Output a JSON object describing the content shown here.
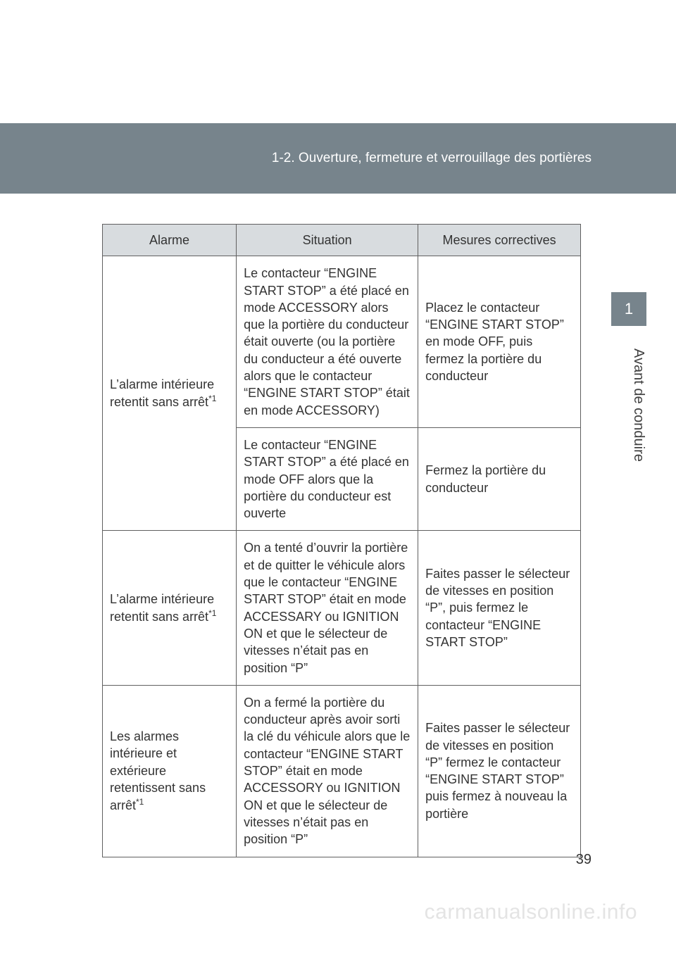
{
  "header": {
    "section_title": "1-2. Ouverture, fermeture et verrouillage des portières",
    "background_color": "#77848c",
    "text_color": "#ffffff"
  },
  "side": {
    "tab_number": "1",
    "vertical_label": "Avant de conduire",
    "tab_background": "#77848c"
  },
  "table": {
    "columns": [
      "Alarme",
      "Situation",
      "Mesures correctives"
    ],
    "header_background": "#d8dcdf",
    "border_color": "#606060",
    "font_size": 18,
    "rows": [
      {
        "alarme": "L’alarme intérieure retentit sans arrêt",
        "alarme_sup": "*1",
        "alarme_rowspan": 2,
        "situation": "Le contacteur “ENGINE START STOP” a été placé en mode ACCESSORY alors que la portière du conducteur était ouverte (ou la portière du conducteur a été ouverte alors que le contacteur “ENGINE START STOP” était en mode ACCESSORY)",
        "mesure": "Placez le contacteur “ENGINE START STOP” en mode OFF, puis fermez la portière du conducteur"
      },
      {
        "situation": "Le contacteur “ENGINE START STOP” a été placé en mode OFF alors que la portière du conducteur est ouverte",
        "mesure": "Fermez la portière du conducteur"
      },
      {
        "alarme": "L’alarme intérieure retentit sans arrêt",
        "alarme_sup": "*1",
        "situation": "On a tenté d’ouvrir la portière et de quitter le véhicule alors que le contacteur “ENGINE START STOP” était en mode ACCESSARY ou IGNITION ON et que le sélecteur de vitesses n’était pas en position “P”",
        "mesure": "Faites passer le sélecteur de vitesses en position “P”, puis fermez le contacteur “ENGINE START STOP”"
      },
      {
        "alarme": "Les alarmes intérieure et extérieure retentissent sans arrêt",
        "alarme_sup": "*1",
        "situation": "On a fermé la portière du conducteur après avoir sorti la clé du véhicule alors que le contacteur “ENGINE START STOP” était en mode ACCESSORY ou IGNITION ON et que le sélecteur de vitesses n’était pas en position “P”",
        "mesure": "Faites passer le sélecteur de vitesses en position “P” fermez le contacteur “ENGINE START STOP” puis fermez à nouveau la portière"
      }
    ]
  },
  "footer": {
    "page_number": "39",
    "watermark": "carmanualsonline.info",
    "watermark_color": "#e4e4e4"
  }
}
